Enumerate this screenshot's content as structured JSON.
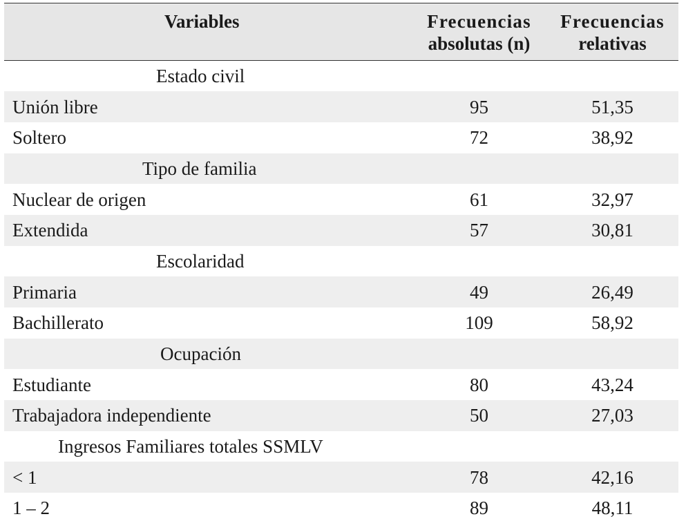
{
  "table": {
    "headers": {
      "variables": "Variables",
      "abs_line1": "Frecuencias",
      "abs_line2": "absolutas (n)",
      "rel_line1": "Frecuencias",
      "rel_line2": "relativas"
    },
    "sections": [
      {
        "title": "Estado civil",
        "rows": [
          {
            "label": "Unión libre",
            "n": "95",
            "rel": "51,35"
          },
          {
            "label": "Soltero",
            "n": "72",
            "rel": "38,92"
          }
        ]
      },
      {
        "title": "Tipo de familia",
        "rows": [
          {
            "label": "Nuclear de origen",
            "n": "61",
            "rel": "32,97"
          },
          {
            "label": "Extendida",
            "n": "57",
            "rel": "30,81"
          }
        ]
      },
      {
        "title": "Escolaridad",
        "rows": [
          {
            "label": "Primaria",
            "n": "49",
            "rel": "26,49"
          },
          {
            "label": "Bachillerato",
            "n": "109",
            "rel": "58,92"
          }
        ]
      },
      {
        "title": "Ocupación",
        "rows": [
          {
            "label": "Estudiante",
            "n": "80",
            "rel": "43,24"
          },
          {
            "label": "Trabajadora independiente",
            "n": "50",
            "rel": "27,03"
          }
        ]
      },
      {
        "title": "Ingresos Familiares totales SSMLV",
        "rows": [
          {
            "label": "< 1",
            "n": "78",
            "rel": "42,16"
          },
          {
            "label": "1 – 2",
            "n": "89",
            "rel": "48,11"
          }
        ]
      }
    ]
  }
}
